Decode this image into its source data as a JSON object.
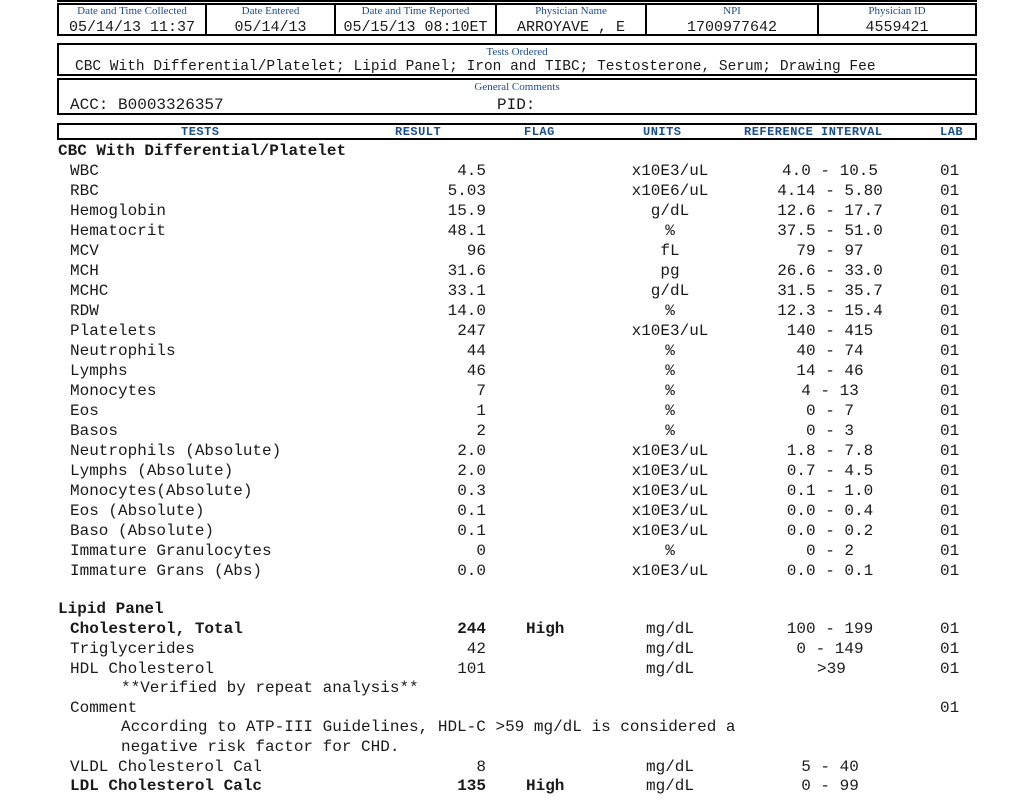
{
  "header": {
    "collected_label": "Date and Time Collected",
    "collected_value": "05/14/13 11:37",
    "entered_label": "Date Entered",
    "entered_value": "05/14/13",
    "reported_label": "Date and Time Reported",
    "reported_value": "05/15/13 08:10ET",
    "physician_label": "Physician Name",
    "physician_value": "ARROYAVE , E",
    "npi_label": "NPI",
    "npi_value": "1700977642",
    "physid_label": "Physician ID",
    "physid_value": "4559421"
  },
  "tests_ordered": {
    "label": "Tests Ordered",
    "value": "CBC With Differential/Platelet; Lipid Panel; Iron and TIBC; Testosterone, Serum; Drawing Fee"
  },
  "general_comments": {
    "label": "General Comments",
    "acc": "ACC: B0003326357",
    "pid": "PID:"
  },
  "columns": {
    "tests": "TESTS",
    "result": "RESULT",
    "flag": "FLAG",
    "units": "UNITS",
    "reference": "REFERENCE INTERVAL",
    "lab": "LAB"
  },
  "cbc": {
    "title": "CBC With Differential/Platelet",
    "rows": [
      {
        "test": "WBC",
        "result": "4.5",
        "flag": "",
        "units": "x10E3/uL",
        "ref": "4.0 - 10.5",
        "lab": "01"
      },
      {
        "test": "RBC",
        "result": "5.03",
        "flag": "",
        "units": "x10E6/uL",
        "ref": "4.14 - 5.80",
        "lab": "01"
      },
      {
        "test": "Hemoglobin",
        "result": "15.9",
        "flag": "",
        "units": "g/dL",
        "ref": "12.6 - 17.7",
        "lab": "01"
      },
      {
        "test": "Hematocrit",
        "result": "48.1",
        "flag": "",
        "units": "%",
        "ref": "37.5 - 51.0",
        "lab": "01"
      },
      {
        "test": "MCV",
        "result": "96",
        "flag": "",
        "units": "fL",
        "ref": "79 - 97",
        "lab": "01"
      },
      {
        "test": "MCH",
        "result": "31.6",
        "flag": "",
        "units": "pg",
        "ref": "26.6 - 33.0",
        "lab": "01"
      },
      {
        "test": "MCHC",
        "result": "33.1",
        "flag": "",
        "units": "g/dL",
        "ref": "31.5 - 35.7",
        "lab": "01"
      },
      {
        "test": "RDW",
        "result": "14.0",
        "flag": "",
        "units": "%",
        "ref": "12.3 - 15.4",
        "lab": "01"
      },
      {
        "test": "Platelets",
        "result": "247",
        "flag": "",
        "units": "x10E3/uL",
        "ref": "140 - 415",
        "lab": "01"
      },
      {
        "test": "Neutrophils",
        "result": "44",
        "flag": "",
        "units": "%",
        "ref": "40 - 74",
        "lab": "01"
      },
      {
        "test": "Lymphs",
        "result": "46",
        "flag": "",
        "units": "%",
        "ref": "14 - 46",
        "lab": "01"
      },
      {
        "test": "Monocytes",
        "result": "7",
        "flag": "",
        "units": "%",
        "ref": "4 - 13",
        "lab": "01"
      },
      {
        "test": "Eos",
        "result": "1",
        "flag": "",
        "units": "%",
        "ref": "0 - 7",
        "lab": "01"
      },
      {
        "test": "Basos",
        "result": "2",
        "flag": "",
        "units": "%",
        "ref": "0 - 3",
        "lab": "01"
      },
      {
        "test": "Neutrophils (Absolute)",
        "result": "2.0",
        "flag": "",
        "units": "x10E3/uL",
        "ref": "1.8 - 7.8",
        "lab": "01"
      },
      {
        "test": "Lymphs (Absolute)",
        "result": "2.0",
        "flag": "",
        "units": "x10E3/uL",
        "ref": "0.7 - 4.5",
        "lab": "01"
      },
      {
        "test": "Monocytes(Absolute)",
        "result": "0.3",
        "flag": "",
        "units": "x10E3/uL",
        "ref": "0.1 - 1.0",
        "lab": "01"
      },
      {
        "test": "Eos (Absolute)",
        "result": "0.1",
        "flag": "",
        "units": "x10E3/uL",
        "ref": "0.0 - 0.4",
        "lab": "01"
      },
      {
        "test": "Baso (Absolute)",
        "result": "0.1",
        "flag": "",
        "units": "x10E3/uL",
        "ref": "0.0 - 0.2",
        "lab": "01"
      },
      {
        "test": "Immature Granulocytes",
        "result": "0",
        "flag": "",
        "units": "%",
        "ref": "0 - 2",
        "lab": "01"
      },
      {
        "test": "Immature Grans (Abs)",
        "result": "0.0",
        "flag": "",
        "units": "x10E3/uL",
        "ref": "0.0 - 0.1",
        "lab": "01"
      }
    ]
  },
  "lipid": {
    "title": "Lipid Panel",
    "chol": {
      "test": "Cholesterol, Total",
      "result": "244",
      "flag": "High",
      "units": "mg/dL",
      "ref": "100 - 199",
      "lab": "01"
    },
    "trig": {
      "test": "Triglycerides",
      "result": "42",
      "flag": "",
      "units": "mg/dL",
      "ref": "0 - 149",
      "lab": "01"
    },
    "hdl": {
      "test": "HDL Cholesterol",
      "result": "101",
      "flag": "",
      "units": "mg/dL",
      "ref": ">39",
      "lab": "01"
    },
    "verified_note": "**Verified by repeat analysis**",
    "comment_label": "Comment",
    "comment_lab": "01",
    "comment_line1": "According to ATP-III Guidelines, HDL-C >59 mg/dL is considered a",
    "comment_line2": "negative risk factor for CHD.",
    "vldl": {
      "test": "VLDL Cholesterol Cal",
      "result": "8",
      "flag": "",
      "units": "mg/dL",
      "ref": "5 - 40",
      "lab": ""
    },
    "ldl": {
      "test": "LDL Cholesterol Calc",
      "result": "135",
      "flag": "High",
      "units": "mg/dL",
      "ref": "0 - 99",
      "lab": ""
    }
  }
}
